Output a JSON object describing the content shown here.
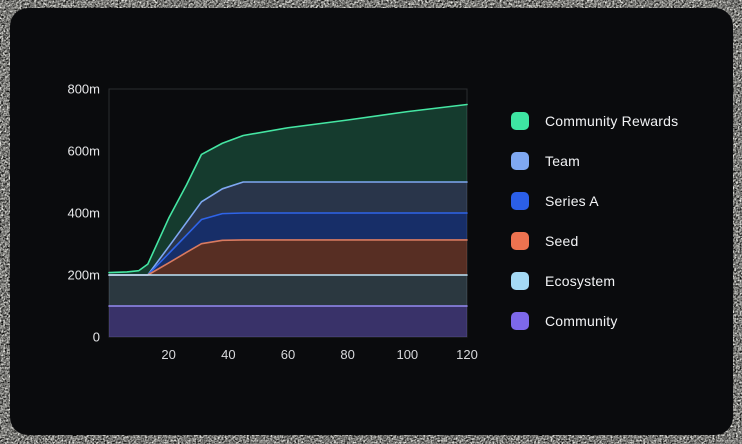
{
  "page": {
    "background_color": "#0e0e0d",
    "card_background": "#0a0b0d"
  },
  "chart_data": {
    "type": "area",
    "stacked": true,
    "unit": "m",
    "xlim": [
      0,
      120
    ],
    "ylim": [
      0,
      800
    ],
    "grid": false,
    "legend_position": "right",
    "x": [
      0,
      6,
      10,
      13,
      20,
      26,
      31,
      38,
      45,
      60,
      80,
      100,
      120
    ],
    "series": [
      {
        "key": "community",
        "name": "Community",
        "color": "#7d68ea",
        "line_color": "#958af2",
        "fill_opacity": 0.42,
        "values": [
          100,
          100,
          100,
          100,
          100,
          100,
          100,
          100,
          100,
          100,
          100,
          100,
          100
        ]
      },
      {
        "key": "ecosystem",
        "name": "Ecosystem",
        "color": "#a5daf5",
        "line_color": "#bfe4f8",
        "fill_opacity": 0.22,
        "values": [
          100,
          100,
          100,
          100,
          100,
          100,
          100,
          100,
          100,
          100,
          100,
          100,
          100
        ]
      },
      {
        "key": "seed",
        "name": "Seed",
        "color": "#ee7350",
        "line_color": "#d97a60",
        "fill_opacity": 0.34,
        "values": [
          0,
          0,
          0,
          0,
          39,
          73,
          101,
          112,
          113,
          113,
          113,
          113,
          113
        ]
      },
      {
        "key": "series_a",
        "name": "Series A",
        "color": "#2b5fe8",
        "line_color": "#2f64e8",
        "fill_opacity": 0.42,
        "values": [
          0,
          0,
          0,
          0,
          30,
          56,
          78,
          86,
          87,
          87,
          87,
          87,
          87
        ]
      },
      {
        "key": "team",
        "name": "Team",
        "color": "#7fa8f2",
        "line_color": "#7fa8f2",
        "fill_opacity": 0.27,
        "values": [
          0,
          0,
          0,
          0,
          22,
          41,
          57,
          80,
          100,
          100,
          100,
          100,
          100
        ]
      },
      {
        "key": "community_rewards",
        "name": "Community Rewards",
        "color": "#3ee6a2",
        "line_color": "#45e6a3",
        "fill_opacity": 0.22,
        "values": [
          8,
          10,
          14,
          35,
          92,
          121,
          153,
          147,
          150,
          175,
          200,
          227,
          250
        ]
      }
    ],
    "y_ticks": [
      {
        "v": 0,
        "label": "0"
      },
      {
        "v": 200,
        "label": "200m"
      },
      {
        "v": 400,
        "label": "400m"
      },
      {
        "v": 600,
        "label": "600m"
      },
      {
        "v": 800,
        "label": "800m"
      }
    ],
    "x_ticks": [
      {
        "v": 20,
        "label": "20"
      },
      {
        "v": 40,
        "label": "40"
      },
      {
        "v": 60,
        "label": "60"
      },
      {
        "v": 80,
        "label": "80"
      },
      {
        "v": 100,
        "label": "100"
      },
      {
        "v": 120,
        "label": "120"
      }
    ],
    "axis": {
      "frame_color": "#2b2c30",
      "y_label_color": "#e6e7e9",
      "x_label_color": "#d8d9dc"
    }
  }
}
